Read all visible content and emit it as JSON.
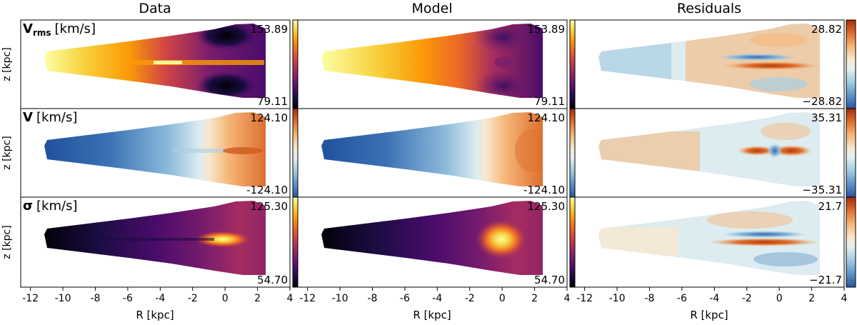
{
  "chart_data": {
    "type": "heatmap",
    "columns": [
      "Data",
      "Model",
      "Residuals"
    ],
    "xlabel": "R [kpc]",
    "ylabel": "z [kpc]",
    "xlim": [
      -12.6,
      4.0
    ],
    "xticks": [
      -12,
      -10,
      -8,
      -6,
      -4,
      -2,
      0,
      2,
      4
    ],
    "xtick_labels": [
      "-12",
      "-10",
      "-8",
      "-6",
      "-4",
      "-2",
      "0",
      "2",
      "4"
    ],
    "rows": [
      {
        "quantity": "Vrms",
        "label_main": "V",
        "label_sub": "rms",
        "label_unit": "[km/s]",
        "data_range": {
          "max": "153.89",
          "min": "79.11"
        },
        "residual_range": {
          "max": "28.82",
          "min": "−28.82"
        },
        "colormap": "inferno",
        "residual_colormap": "RdYlBu_r"
      },
      {
        "quantity": "V",
        "label_main": "V",
        "label_sub": "",
        "label_unit": "[km/s]",
        "data_range": {
          "max": "124.10",
          "min": "-124.10"
        },
        "residual_range": {
          "max": "35.31",
          "min": "−35.31"
        },
        "colormap": "RdYlBu_r",
        "residual_colormap": "RdYlBu_r"
      },
      {
        "quantity": "sigma",
        "label_main": "σ",
        "label_sub": "",
        "label_unit": "[km/s]",
        "data_range": {
          "max": "125.30",
          "min": "54.70"
        },
        "residual_range": {
          "max": "21.7",
          "min": "−21.7"
        },
        "colormap": "inferno",
        "residual_colormap": "RdYlBu_r"
      }
    ],
    "colors": {
      "inferno": [
        "#000004",
        "#1b0c41",
        "#4a0c6b",
        "#781c6d",
        "#a52c60",
        "#cf4446",
        "#ed6925",
        "#fb9b06",
        "#f7d13d",
        "#fcffa4"
      ],
      "diverging": [
        "#3a5fa8",
        "#6f9fcc",
        "#a8cfe3",
        "#dcecf0",
        "#f6e9d2",
        "#f8c690",
        "#ee8a43",
        "#cf5a1c",
        "#a8310c"
      ]
    }
  }
}
